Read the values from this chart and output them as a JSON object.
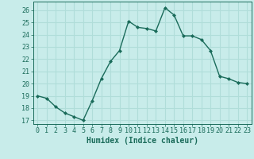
{
  "x": [
    0,
    1,
    2,
    3,
    4,
    5,
    6,
    7,
    8,
    9,
    10,
    11,
    12,
    13,
    14,
    15,
    16,
    17,
    18,
    19,
    20,
    21,
    22,
    23
  ],
  "y": [
    19,
    18.8,
    18.1,
    17.6,
    17.3,
    17.0,
    18.6,
    20.4,
    21.8,
    22.7,
    25.1,
    24.6,
    24.5,
    24.3,
    26.2,
    25.6,
    23.9,
    23.9,
    23.6,
    22.7,
    20.6,
    20.4,
    20.1,
    20.0
  ],
  "line_color": "#1a6b5a",
  "marker": "D",
  "markersize": 2.0,
  "linewidth": 1.0,
  "xlabel": "Humidex (Indice chaleur)",
  "xlim": [
    -0.5,
    23.5
  ],
  "ylim": [
    16.7,
    26.7
  ],
  "yticks": [
    17,
    18,
    19,
    20,
    21,
    22,
    23,
    24,
    25,
    26
  ],
  "xticks": [
    0,
    1,
    2,
    3,
    4,
    5,
    6,
    7,
    8,
    9,
    10,
    11,
    12,
    13,
    14,
    15,
    16,
    17,
    18,
    19,
    20,
    21,
    22,
    23
  ],
  "bg_color": "#c8ecea",
  "grid_color": "#b0ddd9",
  "tick_color": "#1a6b5a",
  "label_color": "#1a6b5a",
  "xlabel_fontsize": 7.0,
  "tick_fontsize": 6.0
}
